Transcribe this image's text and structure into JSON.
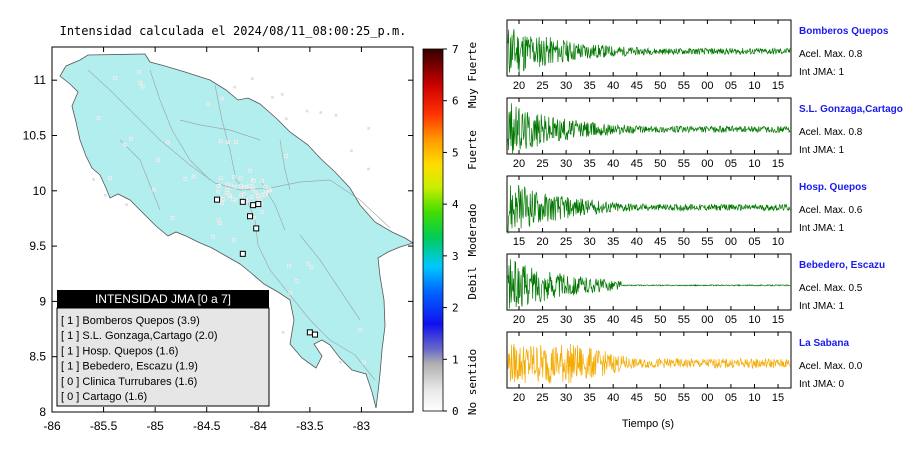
{
  "map": {
    "title": "Intensidad calculada el 2024/08/11_08:00:25_p.m.",
    "x_ticks": [
      "-86",
      "-85.5",
      "-85",
      "-84.5",
      "-84",
      "-83.5",
      "-83"
    ],
    "y_ticks": [
      "11",
      "10.5",
      "10",
      "9.5",
      "9",
      "8.5",
      "8"
    ],
    "land_color": "#b3eeee",
    "legend": {
      "title": "INTENSIDAD JMA [0 a 7]",
      "rows": [
        "[ 1 ]  Bomberos Quepos (3.9)",
        "[ 1 ]  S.L. Gonzaga,Cartago (2.0)",
        "[ 1 ]  Hosp. Quepos (1.6)",
        "[ 1 ]  Bebedero, Escazu (1.9)",
        "[ 0 ]  Clinica Turrubares (1.6)",
        "[ 0 ]  Cartago (1.6)"
      ]
    }
  },
  "colorbar": {
    "ticks": [
      "0",
      "1",
      "2",
      "3",
      "4",
      "5",
      "6",
      "7"
    ],
    "labels": [
      "No sentido",
      "Debil",
      "Moderado",
      "Fuerte",
      "Muy Fuerte"
    ]
  },
  "traces": {
    "xlabel": "Tiempo (s)",
    "panels": [
      {
        "name": "Bomberos Quepos",
        "acel": "Acel. Max. 0.8",
        "jma": "Int JMA: 1",
        "color": "#007700",
        "ticks": [
          "20",
          "25",
          "30",
          "35",
          "40",
          "45",
          "50",
          "55",
          "00",
          "05",
          "10",
          "15"
        ]
      },
      {
        "name": "S.L. Gonzaga,Cartago",
        "acel": "Acel. Max. 0.8",
        "jma": "Int JMA: 1",
        "color": "#007700",
        "ticks": [
          "20",
          "25",
          "30",
          "35",
          "40",
          "45",
          "50",
          "55",
          "00",
          "05",
          "10",
          "15"
        ]
      },
      {
        "name": "Hosp. Quepos",
        "acel": "Acel. Max. 0.6",
        "jma": "Int JMA: 1",
        "color": "#007700",
        "ticks": [
          "15",
          "20",
          "25",
          "30",
          "35",
          "40",
          "45",
          "50",
          "55",
          "00",
          "05",
          "10"
        ]
      },
      {
        "name": "Bebedero, Escazu",
        "acel": "Acel. Max. 0.5",
        "jma": "Int JMA: 1",
        "color": "#007700",
        "ticks": [
          "20",
          "25",
          "30",
          "35",
          "40",
          "45",
          "50",
          "55",
          "00",
          "05",
          "10",
          "15"
        ]
      },
      {
        "name": "La Sabana",
        "acel": "Acel. Max. 0.0",
        "jma": "Int JMA: 0",
        "color": "#f5aa00",
        "ticks": [
          "20",
          "25",
          "30",
          "35",
          "40",
          "45",
          "50",
          "55",
          "00",
          "05",
          "10",
          "15"
        ]
      }
    ]
  },
  "chart_data": {
    "type": "heatmap",
    "title": "Intensidad calculada el 2024/08/11_08:00:25_p.m.",
    "xlim": [
      -86,
      -82.5
    ],
    "ylim": [
      8,
      11.3
    ],
    "colorbar_range": [
      0,
      7
    ],
    "stations": [
      {
        "name": "Bomberos Quepos",
        "jma": 1,
        "value": 3.9
      },
      {
        "name": "S.L. Gonzaga,Cartago",
        "jma": 1,
        "value": 2.0
      },
      {
        "name": "Hosp. Quepos",
        "jma": 1,
        "value": 1.6
      },
      {
        "name": "Bebedero, Escazu",
        "jma": 1,
        "value": 1.9
      },
      {
        "name": "Clinica Turrubares",
        "jma": 0,
        "value": 1.6
      },
      {
        "name": "Cartago",
        "jma": 0,
        "value": 1.6
      }
    ],
    "station_markers": [
      {
        "lon": -84.4,
        "lat": 9.92
      },
      {
        "lon": -84.15,
        "lat": 9.9
      },
      {
        "lon": -84.05,
        "lat": 9.87
      },
      {
        "lon": -84.0,
        "lat": 9.88
      },
      {
        "lon": -84.08,
        "lat": 9.77
      },
      {
        "lon": -84.02,
        "lat": 9.66
      },
      {
        "lon": -84.15,
        "lat": 9.43
      },
      {
        "lon": -83.5,
        "lat": 8.72
      },
      {
        "lon": -83.45,
        "lat": 8.7
      }
    ]
  }
}
